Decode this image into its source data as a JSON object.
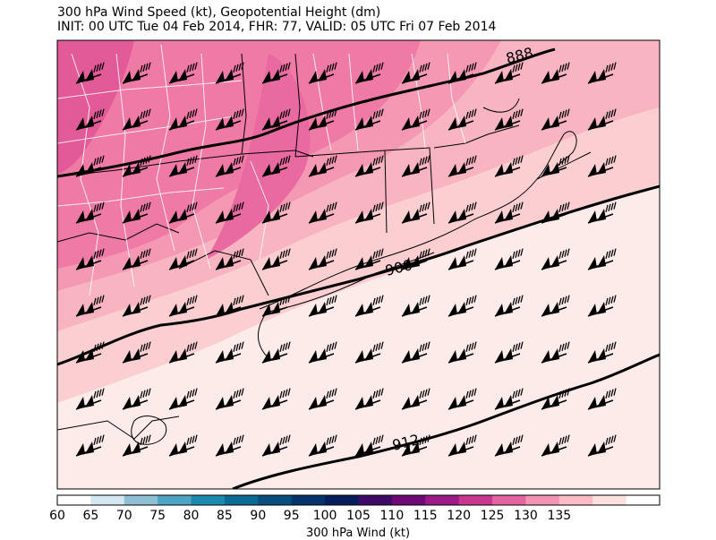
{
  "header": {
    "title_line1": "300 hPa Wind Speed (kt), Geopotential Height (dm)",
    "title_line2": "INIT: 00 UTC Tue 04 Feb 2014, FHR: 77, VALID: 05 UTC Fri 07 Feb 2014"
  },
  "contours": [
    {
      "label": "888"
    },
    {
      "label": "900"
    },
    {
      "label": "912"
    }
  ],
  "colorbar": {
    "label": "300 hPa Wind (kt)",
    "ticks": [
      "60",
      "65",
      "70",
      "75",
      "80",
      "85",
      "90",
      "95",
      "100",
      "105",
      "110",
      "115",
      "120",
      "125",
      "130",
      "135"
    ],
    "colors": [
      "#ffffff",
      "#d2e7f0",
      "#8fc1d6",
      "#4ea4c2",
      "#1c89b0",
      "#0b6b96",
      "#084f80",
      "#06336b",
      "#061f5c",
      "#3f0b6b",
      "#6e0a78",
      "#9c1a87",
      "#c9388f",
      "#e3659f",
      "#f394b5",
      "#fbbcc6",
      "#fde1df",
      "#ffffff"
    ]
  },
  "wind_barb_icon": "wind-barb-icon"
}
